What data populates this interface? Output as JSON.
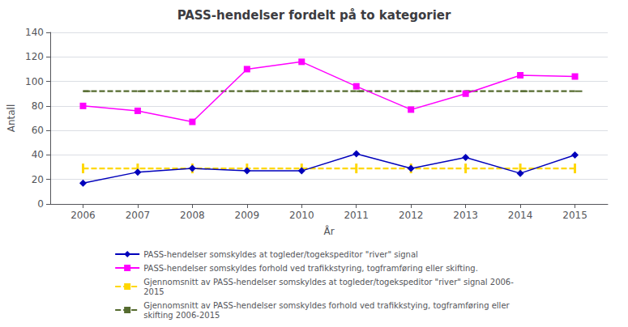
{
  "chart_data": {
    "type": "line",
    "title": "PASS-hendelser fordelt på to kategorier",
    "xlabel": "År",
    "ylabel": "Antall",
    "x": [
      2006,
      2007,
      2008,
      2009,
      2010,
      2011,
      2012,
      2013,
      2014,
      2015
    ],
    "xlim": [
      2005.4,
      2015.6
    ],
    "xticks": [
      2006,
      2007,
      2008,
      2009,
      2010,
      2011,
      2012,
      2013,
      2014,
      2015
    ],
    "ylim": [
      0,
      140
    ],
    "yticks": [
      0,
      20,
      40,
      60,
      80,
      100,
      120,
      140
    ],
    "grid": "y",
    "legend": "bottom",
    "series": [
      {
        "name": "PASS-hendelser somskyldes at togleder/togekspeditor \"river\" signal",
        "color": "#0000BB",
        "marker": "diamond",
        "line_style": "solid",
        "values": [
          17,
          26,
          29,
          27,
          27,
          41,
          29,
          38,
          25,
          40
        ]
      },
      {
        "name": "PASS-hendelser somskyldes forhold ved trafikkstyring, togframføring eller skifting.",
        "color": "#FF00FF",
        "marker": "square",
        "line_style": "solid",
        "values": [
          80,
          76,
          67,
          110,
          116,
          96,
          77,
          90,
          105,
          104
        ]
      },
      {
        "name": "Gjennomsnitt av PASS-hendelser somskyldes at togleder/togekspeditor \"river\" signal 2006-\n2015",
        "color": "#FFD700",
        "marker": "vline",
        "line_style": "dashed",
        "values": [
          29,
          29,
          29,
          29,
          29,
          29,
          29,
          29,
          29,
          29
        ]
      },
      {
        "name": "Gjennomsnitt av PASS-hendelser somskyldes forhold ved trafikkstying, togframføring eller\nskifting 2006-2015",
        "color": "#556B2F",
        "marker": "tickright",
        "line_style": "dashed",
        "values": [
          92,
          92,
          92,
          92,
          92,
          92,
          92,
          92,
          92,
          92
        ]
      }
    ]
  }
}
